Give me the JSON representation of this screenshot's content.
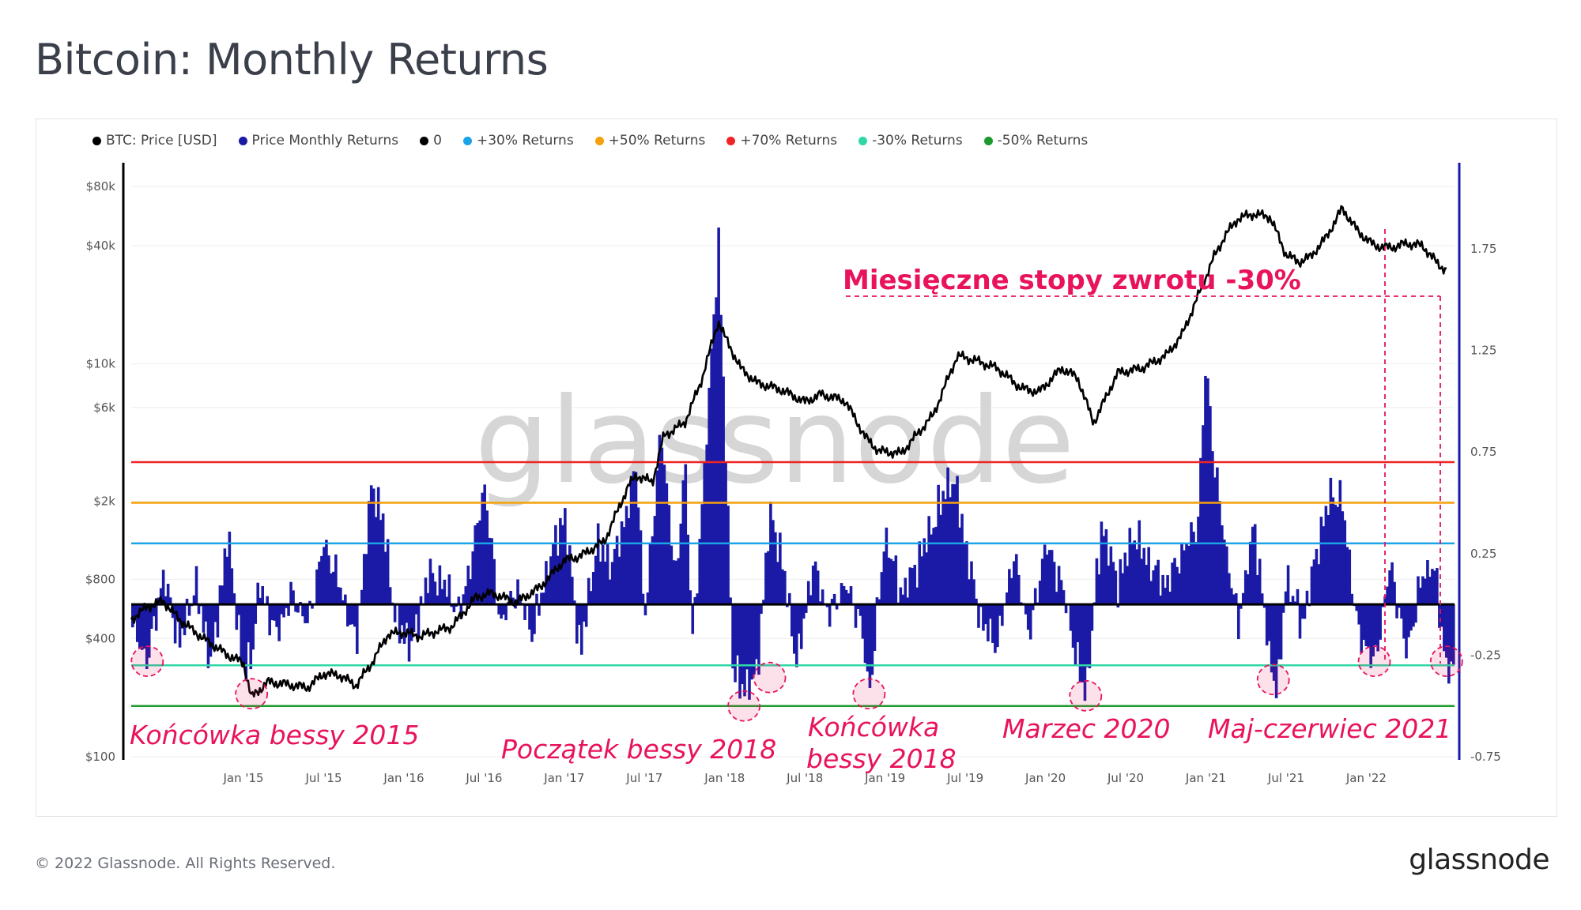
{
  "header": {
    "title": "Bitcoin: Monthly Returns"
  },
  "footer": {
    "copyright": "© 2022 Glassnode. All Rights Reserved.",
    "logo": "glassnode"
  },
  "watermark": "glassnode",
  "colors": {
    "price": "#000000",
    "returns": "#1a1aa6",
    "zero": "#000000",
    "plus30": "#1ba3e8",
    "plus50": "#f5a10b",
    "plus70": "#ef2525",
    "minus30": "#2fd8a6",
    "minus50": "#1e9a2d",
    "annotation": "#e8135c"
  },
  "chart_data": {
    "type": "bar",
    "title": "Bitcoin: Monthly Returns",
    "legend": [
      {
        "name": "BTC: Price [USD]",
        "color": "#000000"
      },
      {
        "name": "Price Monthly Returns",
        "color": "#1a1aa6"
      },
      {
        "name": "0",
        "color": "#000000"
      },
      {
        "name": "+30% Returns",
        "color": "#1ba3e8"
      },
      {
        "name": "+50% Returns",
        "color": "#f5a10b"
      },
      {
        "name": "+70% Returns",
        "color": "#ef2525"
      },
      {
        "name": "-30% Returns",
        "color": "#2fd8a6"
      },
      {
        "name": "-50% Returns",
        "color": "#1e9a2d"
      }
    ],
    "legend_position": "top-left",
    "x_ticks": [
      "Jan '15",
      "Jul '15",
      "Jan '16",
      "Jul '16",
      "Jan '17",
      "Jul '17",
      "Jan '18",
      "Jul '18",
      "Jan '19",
      "Jul '19",
      "Jan '20",
      "Jul '20",
      "Jan '21",
      "Jul '21",
      "Jan '22"
    ],
    "x_range": [
      2014.3,
      2022.55
    ],
    "y_left": {
      "scale": "log",
      "range": [
        100,
        100000
      ],
      "ticks": [
        {
          "v": 100,
          "label": "$100"
        },
        {
          "v": 400,
          "label": "$400"
        },
        {
          "v": 800,
          "label": "$800"
        },
        {
          "v": 2000,
          "label": "$2k"
        },
        {
          "v": 6000,
          "label": "$6k"
        },
        {
          "v": 10000,
          "label": "$10k"
        },
        {
          "v": 40000,
          "label": "$40k"
        },
        {
          "v": 80000,
          "label": "$80k"
        }
      ]
    },
    "y_right": {
      "scale": "linear",
      "range": [
        -0.75,
        2.15
      ],
      "ticks": [
        {
          "v": -0.75,
          "label": "-0.75"
        },
        {
          "v": -0.25,
          "label": "-0.25"
        },
        {
          "v": 0.25,
          "label": "0.25"
        },
        {
          "v": 0.75,
          "label": "0.75"
        },
        {
          "v": 1.25,
          "label": "1.25"
        },
        {
          "v": 1.75,
          "label": "1.75"
        }
      ]
    },
    "reference_lines": [
      {
        "name": "0",
        "value": 0,
        "color": "#000000"
      },
      {
        "name": "+30% Returns",
        "value": 0.3,
        "color": "#1ba3e8"
      },
      {
        "name": "+50% Returns",
        "value": 0.5,
        "color": "#f5a10b"
      },
      {
        "name": "+70% Returns",
        "value": 0.7,
        "color": "#ef2525"
      },
      {
        "name": "-30% Returns",
        "value": -0.3,
        "color": "#2fd8a6"
      },
      {
        "name": "-50% Returns",
        "value": -0.5,
        "color": "#1e9a2d"
      }
    ],
    "series": [
      {
        "name": "BTC: Price [USD]",
        "x": [
          2014.3,
          2014.4,
          2014.5,
          2014.6,
          2014.75,
          2014.9,
          2015.0,
          2015.05,
          2015.15,
          2015.25,
          2015.4,
          2015.5,
          2015.6,
          2015.7,
          2015.8,
          2015.9,
          2016.0,
          2016.1,
          2016.3,
          2016.45,
          2016.55,
          2016.7,
          2016.85,
          2017.0,
          2017.1,
          2017.25,
          2017.4,
          2017.45,
          2017.55,
          2017.62,
          2017.75,
          2017.85,
          2017.96,
          2018.0,
          2018.1,
          2018.2,
          2018.35,
          2018.5,
          2018.6,
          2018.75,
          2018.88,
          2018.96,
          2019.1,
          2019.3,
          2019.45,
          2019.55,
          2019.7,
          2019.85,
          2019.96,
          2020.1,
          2020.2,
          2020.3,
          2020.45,
          2020.6,
          2020.75,
          2020.85,
          2020.95,
          2021.05,
          2021.12,
          2021.2,
          2021.3,
          2021.4,
          2021.5,
          2021.58,
          2021.65,
          2021.75,
          2021.85,
          2021.95,
          2022.05,
          2022.15,
          2022.25,
          2022.35,
          2022.45,
          2022.5
        ],
        "values": [
          500,
          580,
          620,
          500,
          400,
          330,
          300,
          200,
          240,
          235,
          225,
          265,
          260,
          230,
          300,
          420,
          430,
          410,
          460,
          650,
          680,
          610,
          730,
          1000,
          1050,
          1250,
          2400,
          2700,
          2500,
          4300,
          5000,
          8000,
          16500,
          13800,
          9500,
          8000,
          7400,
          6400,
          7000,
          6500,
          4200,
          3600,
          3500,
          5500,
          11000,
          10500,
          9500,
          7500,
          7200,
          9500,
          8500,
          5000,
          9000,
          9500,
          11000,
          14000,
          22000,
          35000,
          45000,
          55000,
          58000,
          56000,
          36000,
          33000,
          35000,
          44000,
          62000,
          47000,
          40000,
          39000,
          41000,
          40000,
          32000,
          30000
        ]
      },
      {
        "name": "Price Monthly Returns",
        "x": [
          2014.3,
          2014.4,
          2014.5,
          2014.6,
          2014.7,
          2014.8,
          2014.9,
          2015.0,
          2015.05,
          2015.1,
          2015.2,
          2015.3,
          2015.4,
          2015.5,
          2015.6,
          2015.7,
          2015.8,
          2015.87,
          2015.95,
          2016.05,
          2016.15,
          2016.25,
          2016.35,
          2016.45,
          2016.5,
          2016.6,
          2016.7,
          2016.8,
          2016.9,
          2017.0,
          2017.1,
          2017.2,
          2017.3,
          2017.4,
          2017.45,
          2017.5,
          2017.6,
          2017.7,
          2017.75,
          2017.8,
          2017.9,
          2017.96,
          2018.05,
          2018.1,
          2018.2,
          2018.28,
          2018.35,
          2018.45,
          2018.55,
          2018.65,
          2018.75,
          2018.85,
          2018.9,
          2019.0,
          2019.1,
          2019.2,
          2019.3,
          2019.4,
          2019.45,
          2019.5,
          2019.6,
          2019.7,
          2019.8,
          2019.9,
          2020.0,
          2020.1,
          2020.2,
          2020.25,
          2020.35,
          2020.45,
          2020.55,
          2020.65,
          2020.75,
          2020.85,
          2020.95,
          2021.0,
          2021.05,
          2021.12,
          2021.2,
          2021.3,
          2021.4,
          2021.45,
          2021.5,
          2021.6,
          2021.7,
          2021.78,
          2021.85,
          2021.95,
          2022.0,
          2022.05,
          2022.15,
          2022.25,
          2022.35,
          2022.42,
          2022.5
        ],
        "values": [
          -0.1,
          -0.28,
          0.15,
          -0.2,
          0.1,
          -0.3,
          0.35,
          -0.35,
          -0.25,
          0.1,
          -0.15,
          0.05,
          -0.1,
          0.3,
          0.1,
          -0.2,
          0.6,
          0.4,
          -0.1,
          -0.2,
          0.15,
          0.1,
          -0.05,
          0.35,
          0.6,
          -0.1,
          0.08,
          -0.15,
          0.2,
          0.45,
          -0.25,
          0.3,
          0.2,
          0.5,
          0.7,
          -0.1,
          0.85,
          0.1,
          0.75,
          -0.2,
          1.0,
          1.8,
          -0.3,
          -0.42,
          -0.35,
          0.45,
          0.25,
          -0.3,
          0.2,
          -0.05,
          0.1,
          -0.1,
          -0.45,
          0.35,
          0.05,
          0.2,
          0.4,
          0.62,
          0.55,
          0.3,
          -0.1,
          -0.2,
          0.25,
          -0.15,
          0.3,
          0.1,
          -0.3,
          -0.45,
          0.4,
          0.1,
          0.35,
          0.2,
          0.1,
          0.25,
          0.4,
          1.2,
          0.7,
          0.3,
          -0.1,
          0.4,
          -0.3,
          -0.42,
          0.15,
          -0.1,
          0.3,
          0.55,
          0.5,
          -0.15,
          -0.2,
          -0.3,
          0.2,
          -0.25,
          0.15,
          0.2,
          -0.32
        ]
      }
    ],
    "annotations": [
      {
        "text": "Miesięczne stopy zwrotu -30%"
      },
      {
        "text": "Końcówka bessy 2015"
      },
      {
        "text": "Początek bessy 2018"
      },
      {
        "text": "Końcówka",
        "text2": "bessy 2018"
      },
      {
        "text": "Marzec 2020"
      },
      {
        "text": "Maj-czerwiec 2021"
      }
    ],
    "highlight_circles": [
      {
        "x": 2014.4,
        "y": -0.28
      },
      {
        "x": 2015.05,
        "y": -0.44
      },
      {
        "x": 2018.12,
        "y": -0.5
      },
      {
        "x": 2018.28,
        "y": -0.36
      },
      {
        "x": 2018.9,
        "y": -0.44
      },
      {
        "x": 2020.25,
        "y": -0.45
      },
      {
        "x": 2021.42,
        "y": -0.37
      },
      {
        "x": 2022.05,
        "y": -0.28
      },
      {
        "x": 2022.5,
        "y": -0.28
      }
    ]
  }
}
